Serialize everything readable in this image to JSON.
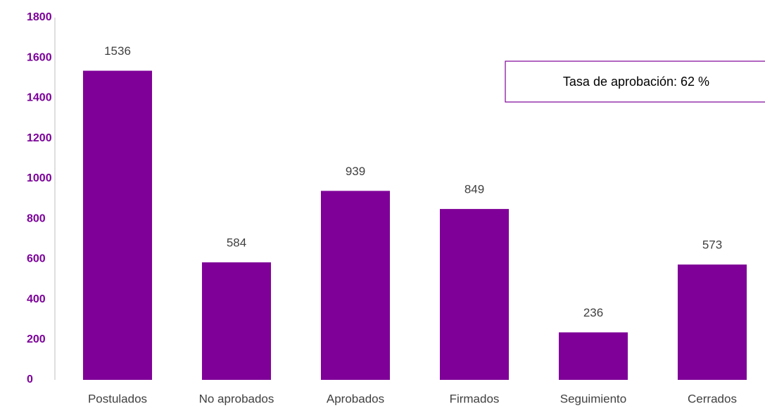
{
  "chart_data": {
    "type": "bar",
    "categories": [
      "Postulados",
      "No aprobados",
      "Aprobados",
      "Firmados",
      "Seguimiento",
      "Cerrados"
    ],
    "values": [
      1536,
      584,
      939,
      849,
      236,
      573
    ],
    "color": "#7f0098",
    "ylim": [
      0,
      1800
    ],
    "yticks": [
      0,
      200,
      400,
      600,
      800,
      1000,
      1200,
      1400,
      1600,
      1800
    ],
    "grid": false,
    "annotation": "Tasa de aprobación:  62 %"
  }
}
